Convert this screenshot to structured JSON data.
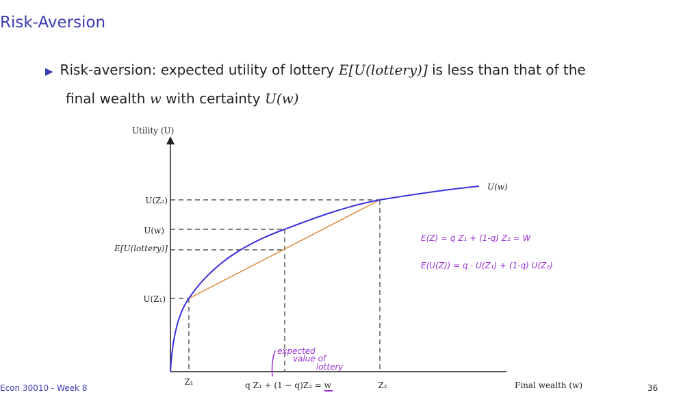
{
  "slide": {
    "title": "Risk-Aversion",
    "bullet": {
      "text1": "Risk-aversion: expected utility of lottery",
      "math1": "E[U(lottery)]",
      "text2": "is less than that of the",
      "text3": "final wealth",
      "math2": "w",
      "text4": "with certainty",
      "math3": "U(w)"
    },
    "diagram": {
      "y_axis_label": "Utility (U)",
      "x_axis_label": "Final wealth (w)",
      "curve_label": "U(w)",
      "y_labels": [
        "U(Z₂)",
        "U(w)",
        "E[U(lottery)]",
        "U(Z₁)"
      ],
      "x_labels": [
        "Z₁",
        "q Z₁ + (1 − q)Z₂ = w",
        "Z₂"
      ]
    },
    "handwriting": {
      "line1": "E(Z) = q Z₁ + (1-q) Z₂ = W",
      "line2": "E(U(Z)) = q · U(Z₁) + (1-q) U(Z₂)",
      "note": [
        "expected",
        "value of",
        "lottery"
      ]
    },
    "footer": {
      "course": "Econ 30010 - Week 8",
      "page": "36"
    }
  }
}
